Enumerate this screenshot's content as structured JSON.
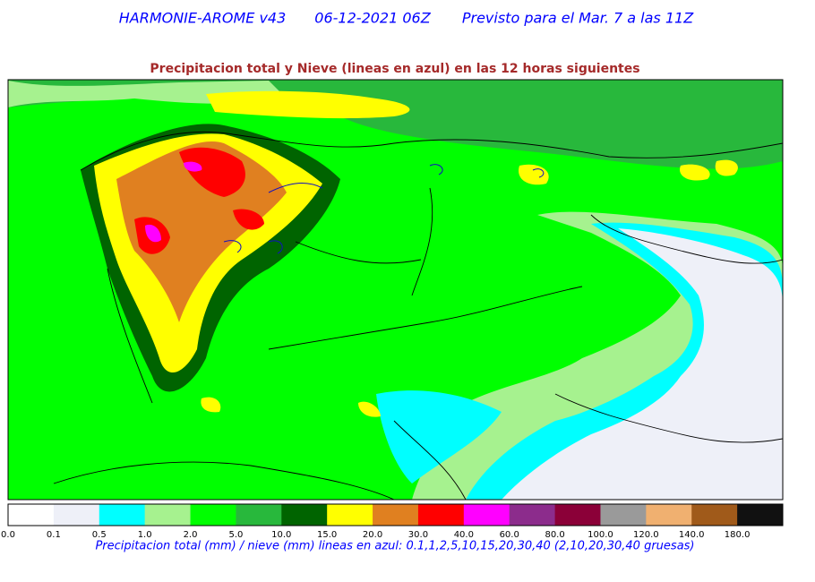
{
  "header": {
    "model": "HARMONIE-AROME v43",
    "run": "06-12-2021 06Z",
    "forecast": "Previsto para el Mar. 7 a las 11Z"
  },
  "subtitle": "Precipitacion total y Nieve (lineas en azul) en las 12 horas siguientes",
  "colorbar": {
    "labels": [
      "0.0",
      "0.1",
      "0.5",
      "1.0",
      "2.0",
      "5.0",
      "10.0",
      "15.0",
      "20.0",
      "30.0",
      "40.0",
      "60.0",
      "80.0",
      "100.0",
      "120.0",
      "140.0",
      "180.0"
    ],
    "colors": [
      "#ffffff",
      "#eef0f8",
      "#00ffff",
      "#a6f28f",
      "#00ff00",
      "#28b83c",
      "#006400",
      "#ffff00",
      "#e08020",
      "#ff0000",
      "#ff00ff",
      "#8c2c8c",
      "#8b0038",
      "#9a9a9a",
      "#f0b070",
      "#a05a1a",
      "#111111"
    ]
  },
  "caption": "Precipitacion total (mm) / nieve (mm) lineas en azul: 0.1,1,2,5,10,15,20,30,40  (2,10,20,30,40 gruesas)"
}
